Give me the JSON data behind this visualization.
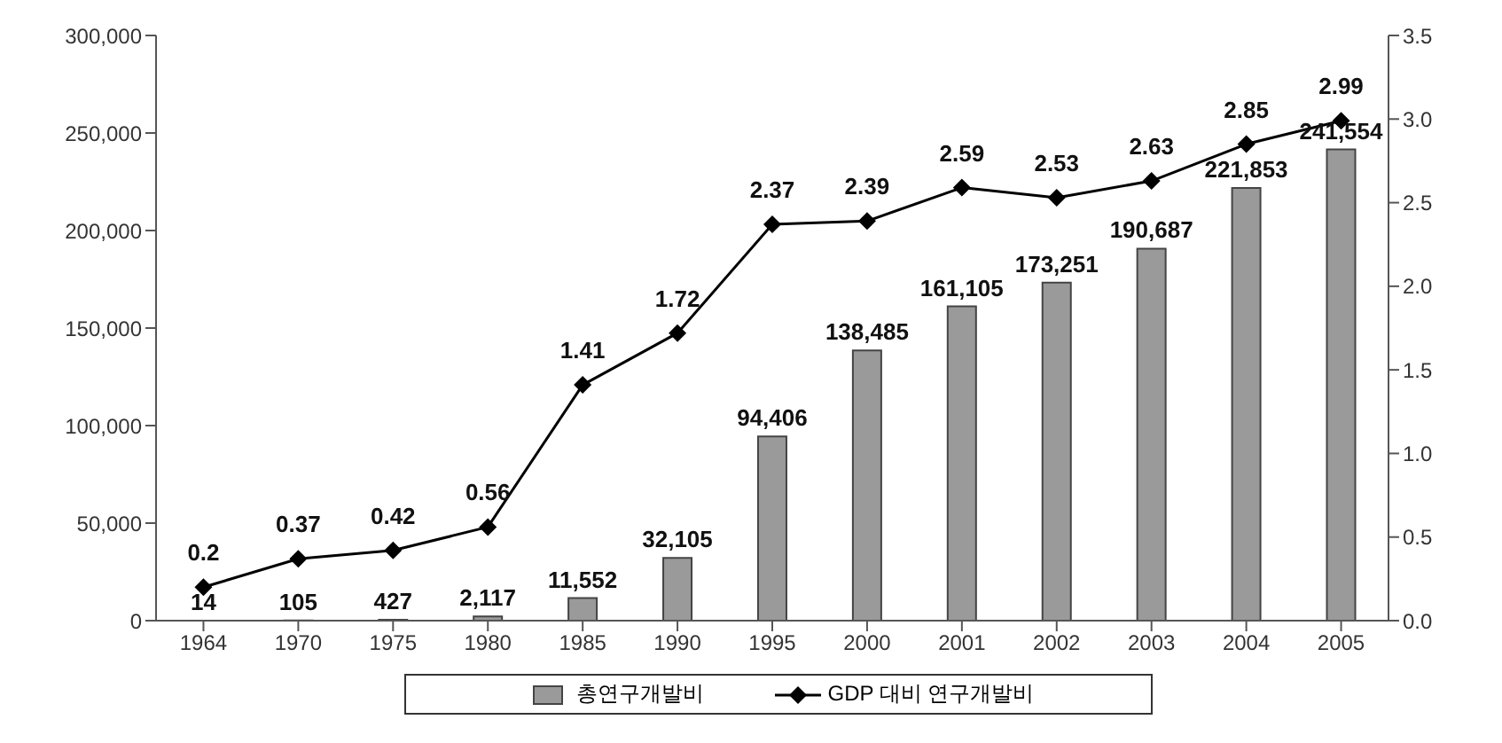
{
  "chart_data": {
    "type": "bar",
    "categories": [
      "1964",
      "1970",
      "1975",
      "1980",
      "1985",
      "1990",
      "1995",
      "2000",
      "2001",
      "2002",
      "2003",
      "2004",
      "2005"
    ],
    "series": [
      {
        "name": "총연구개발비",
        "color": "#9a9a9a",
        "values": [
          14,
          105,
          427,
          2117,
          11552,
          32105,
          94406,
          138485,
          161105,
          173251,
          190687,
          221853,
          241554
        ],
        "value_labels": [
          "14",
          "105",
          "427",
          "2,117",
          "11,552",
          "32,105",
          "94,406",
          "138,485",
          "161,105",
          "173,251",
          "190,687",
          "221,853",
          "241,554"
        ]
      },
      {
        "name": "GDP 대비 연구개발비",
        "type": "line",
        "axis": "y2",
        "color": "#000000",
        "marker": "diamond",
        "values": [
          0.2,
          0.37,
          0.42,
          0.56,
          1.41,
          1.72,
          2.37,
          2.39,
          2.59,
          2.53,
          2.63,
          2.85,
          2.99
        ],
        "value_labels": [
          "0.2",
          "0.37",
          "0.42",
          "0.56",
          "1.41",
          "1.72",
          "2.37",
          "2.39",
          "2.59",
          "2.53",
          "2.63",
          "2.85",
          "2.99"
        ]
      }
    ],
    "ylim": [
      0,
      300000
    ],
    "yticks": [
      0,
      {
        "value": 50000,
        "label": "50,000"
      },
      {
        "value": 100000,
        "label": "100,000"
      },
      {
        "value": 150000,
        "label": "150,000"
      },
      {
        "value": 200000,
        "label": "200,000"
      },
      {
        "value": 250000,
        "label": "250,000"
      },
      {
        "value": 300000,
        "label": "300,000"
      }
    ],
    "y2lim": [
      0,
      3.5
    ],
    "y2ticks": [
      {
        "value": 0,
        "label": "0.0"
      },
      {
        "value": 0.5,
        "label": "0.5"
      },
      {
        "value": 1,
        "label": "1.0"
      },
      {
        "value": 1.5,
        "label": "1.5"
      },
      {
        "value": 2,
        "label": "2.0"
      },
      {
        "value": 2.5,
        "label": "2.5"
      },
      {
        "value": 3,
        "label": "3.0"
      },
      {
        "value": 3.5,
        "label": "3.5"
      }
    ],
    "grid": false,
    "legend": "bottom"
  }
}
